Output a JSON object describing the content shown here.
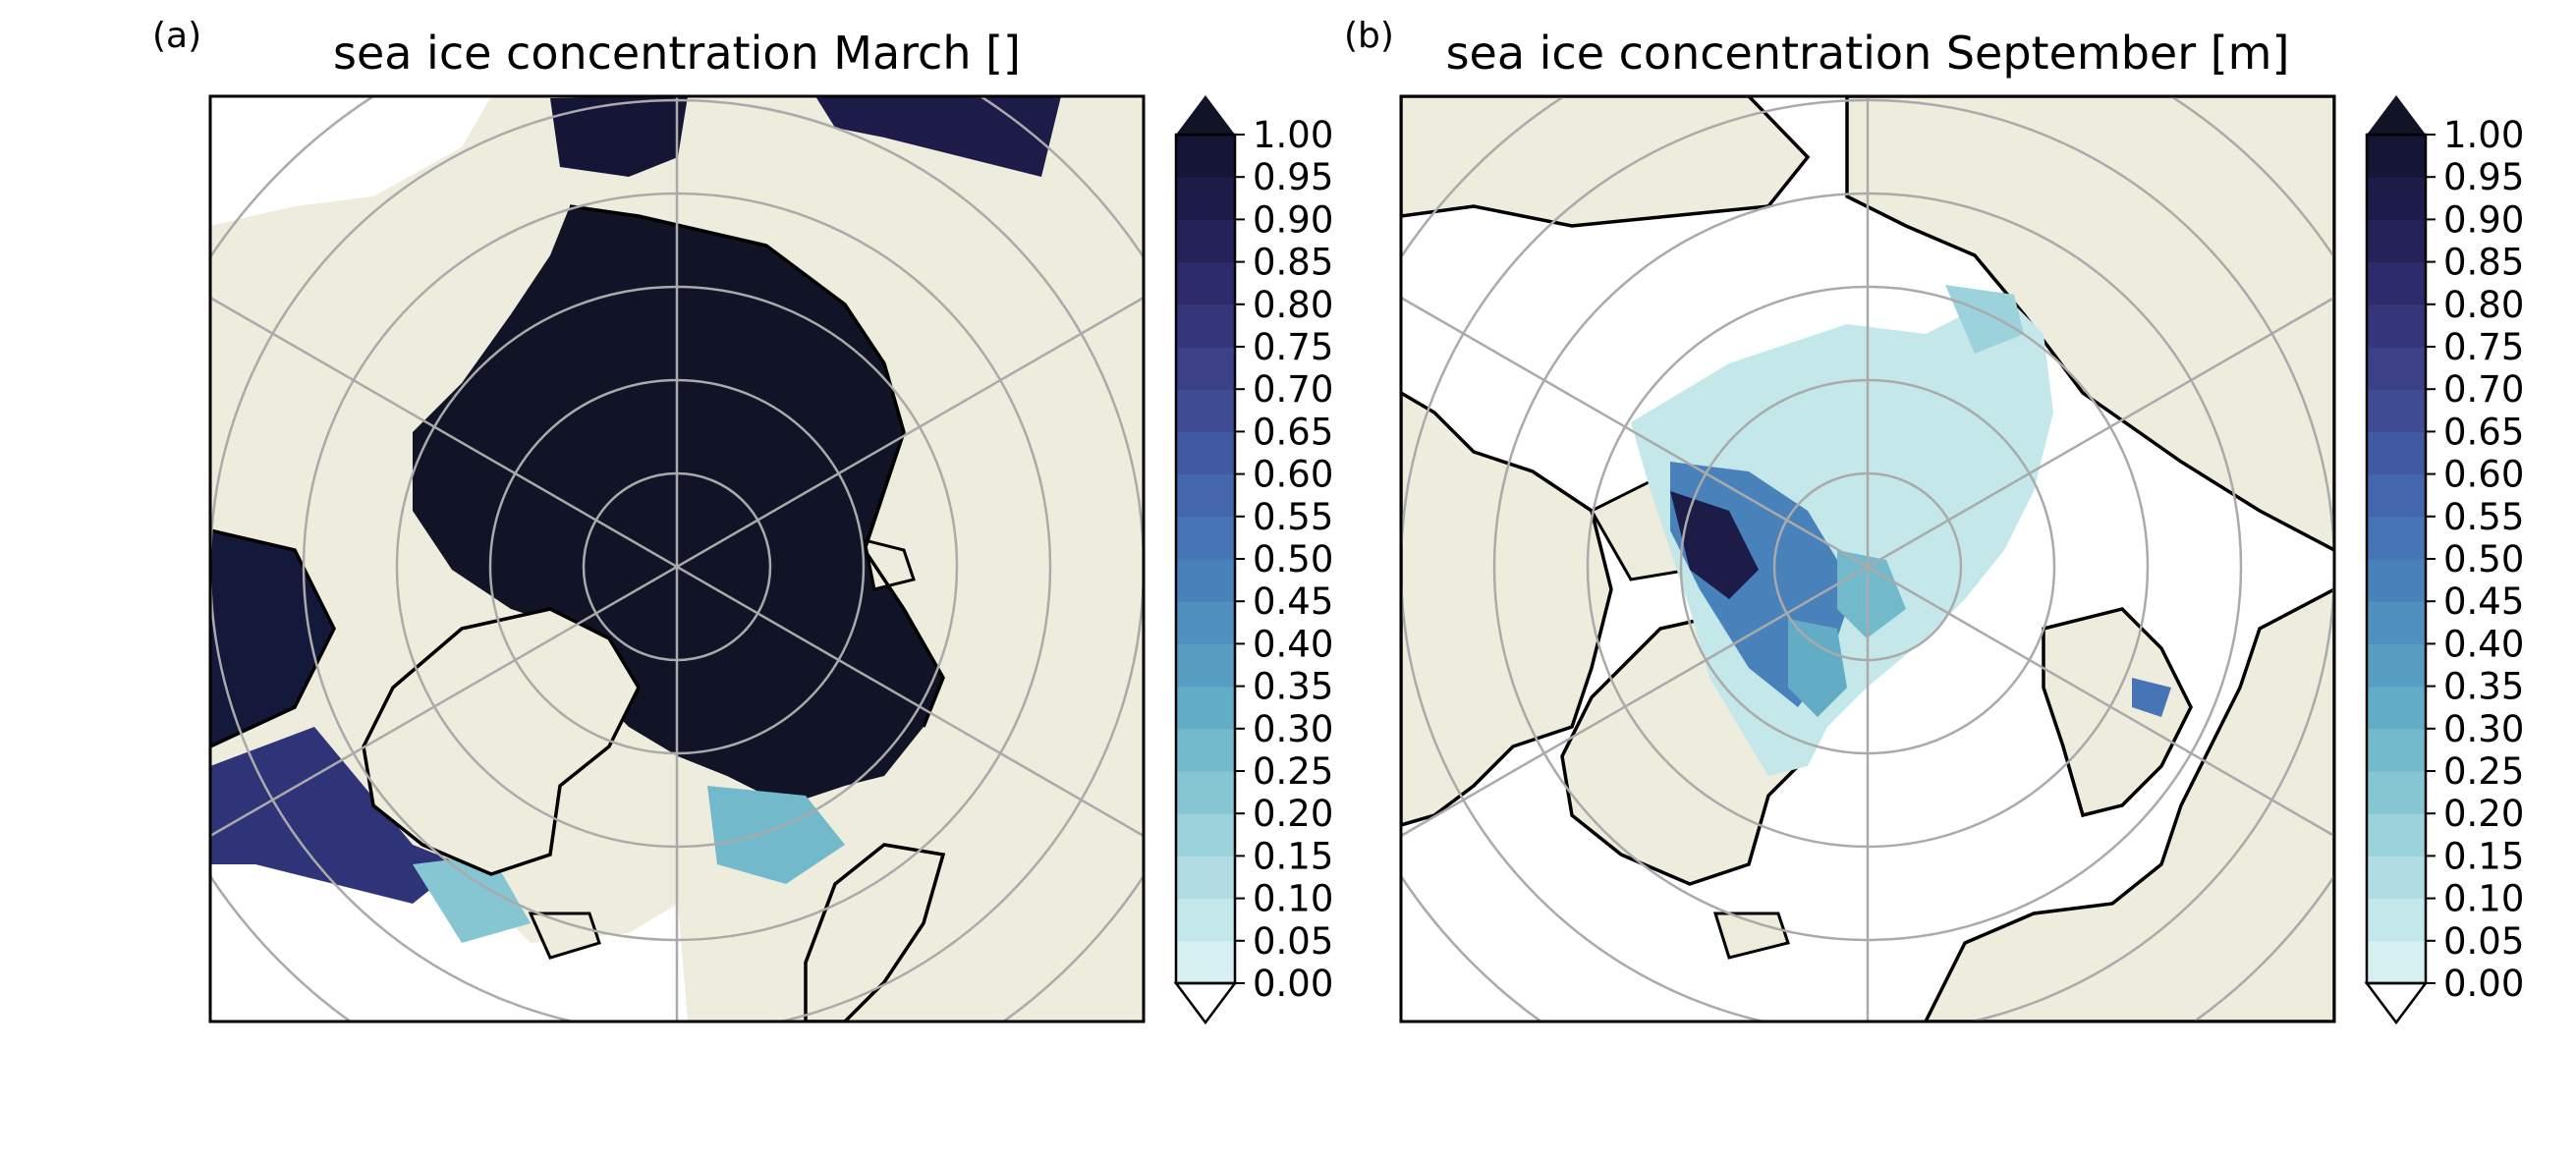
{
  "panels": [
    {
      "label": "(a)",
      "title": "sea ice concentration March []",
      "month": "March",
      "ice_extent_description": "dense ice covering Arctic basin to coasts",
      "colorbar": {
        "min": 0.0,
        "max": 1.0,
        "step": 0.05,
        "extend": "both",
        "tick_labels": [
          "1.00",
          "0.95",
          "0.90",
          "0.85",
          "0.80",
          "0.75",
          "0.70",
          "0.65",
          "0.60",
          "0.55",
          "0.50",
          "0.45",
          "0.40",
          "0.35",
          "0.30",
          "0.25",
          "0.20",
          "0.15",
          "0.10",
          "0.05",
          "0.00"
        ]
      }
    },
    {
      "label": "(b)",
      "title": "sea ice concentration September [m]",
      "month": "September",
      "ice_extent_description": "reduced, lower-concentration ice around the pole",
      "colorbar": {
        "min": 0.0,
        "max": 1.0,
        "step": 0.05,
        "extend": "both",
        "tick_labels": [
          "1.00",
          "0.95",
          "0.90",
          "0.85",
          "0.80",
          "0.75",
          "0.70",
          "0.65",
          "0.60",
          "0.55",
          "0.50",
          "0.45",
          "0.40",
          "0.35",
          "0.30",
          "0.25",
          "0.20",
          "0.15",
          "0.10",
          "0.05",
          "0.00"
        ]
      }
    }
  ],
  "colors": {
    "land": "#eeecdc",
    "ocean": "#ffffff",
    "grid": "#aaaaaa",
    "coast": "#000000",
    "ice_low": "#d6eff1",
    "ice_high": "#101426"
  },
  "colorbar_colors": [
    "#d6eff1",
    "#c4e7ea",
    "#b0dde3",
    "#9bd2db",
    "#86c6d3",
    "#72b9cc",
    "#62acc6",
    "#579ec2",
    "#4f90bf",
    "#4982bb",
    "#4674b4",
    "#4466ac",
    "#4159a1",
    "#3f4c94",
    "#3b4087",
    "#34357a",
    "#2d2b6b",
    "#25225a",
    "#1d1b48",
    "#151636"
  ]
}
